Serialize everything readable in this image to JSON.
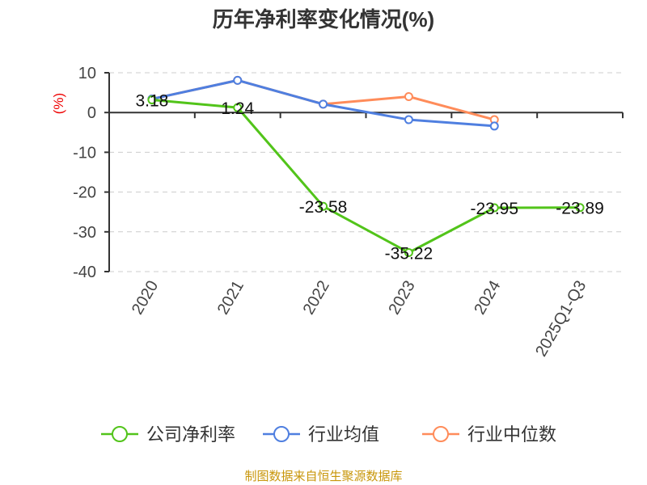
{
  "chart_data": {
    "type": "line",
    "title": "历年净利率变化情况(%)",
    "ylabel": "(%)",
    "categories": [
      "2020",
      "2021",
      "2022",
      "2023",
      "2024",
      "2025Q1-Q3"
    ],
    "ylim": [
      -40,
      10
    ],
    "yticks": [
      10,
      0,
      -10,
      -20,
      -30,
      -40
    ],
    "grid": true,
    "legend_position": "bottom",
    "series": [
      {
        "name": "公司净利率",
        "color": "#52c41a",
        "values": [
          3.18,
          1.24,
          -23.58,
          -35.22,
          -23.95,
          -23.89
        ],
        "labels": [
          "3.18",
          "1.24",
          "-23.58",
          "-35.22",
          "-23.95",
          "-23.89"
        ]
      },
      {
        "name": "行业均值",
        "color": "#4f7fe0",
        "values": [
          3.4,
          8.1,
          2.1,
          -1.8,
          -3.4,
          null
        ]
      },
      {
        "name": "行业中位数",
        "color": "#ff8c5a",
        "values": [
          3.4,
          8.1,
          2.1,
          4.0,
          -1.8,
          null
        ]
      }
    ]
  },
  "footer": {
    "source": "制图数据来自恒生聚源数据库"
  }
}
